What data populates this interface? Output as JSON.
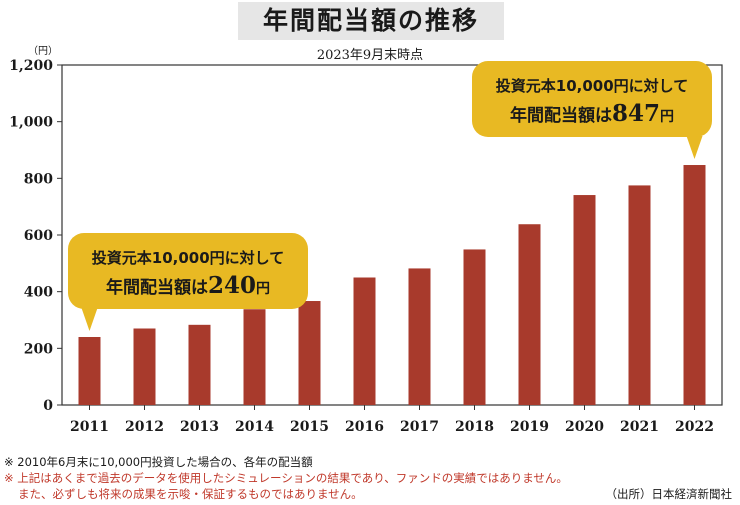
{
  "title": "年間配当額の推移",
  "subtitle": "2023年9月末時点",
  "unit_label": "（円）",
  "chart_data": {
    "type": "bar",
    "categories": [
      "2011",
      "2012",
      "2013",
      "2014",
      "2015",
      "2016",
      "2017",
      "2018",
      "2019",
      "2020",
      "2021",
      "2022"
    ],
    "values": [
      240,
      270,
      283,
      338,
      367,
      450,
      482,
      549,
      638,
      741,
      775,
      847
    ],
    "ylim": [
      0,
      1200
    ],
    "yticks": [
      "0",
      "200",
      "400",
      "600",
      "800",
      "1,000",
      "1,200"
    ],
    "grid": false,
    "bar_color": "#a83a2c",
    "callouts": [
      {
        "category": "2011",
        "line1": "投資元本10,000円に対して",
        "line2_pre": "年間配当額は",
        "line2_value": "240",
        "line2_unit": "円"
      },
      {
        "category": "2022",
        "line1": "投資元本10,000円に対して",
        "line2_pre": "年間配当額は",
        "line2_value": "847",
        "line2_unit": "円"
      }
    ],
    "callout_color": "#e8b923"
  },
  "notes": {
    "line1": "※ 2010年6月末に10,000円投資した場合の、各年の配当額",
    "line2": "※ 上記はあくまで過去のデータを使用したシミュレーションの結果であり、ファンドの実績ではありません。",
    "line3": "また、必ずしも将来の成果を示唆・保証するものではありません。",
    "source": "（出所）日本経済新聞社"
  }
}
